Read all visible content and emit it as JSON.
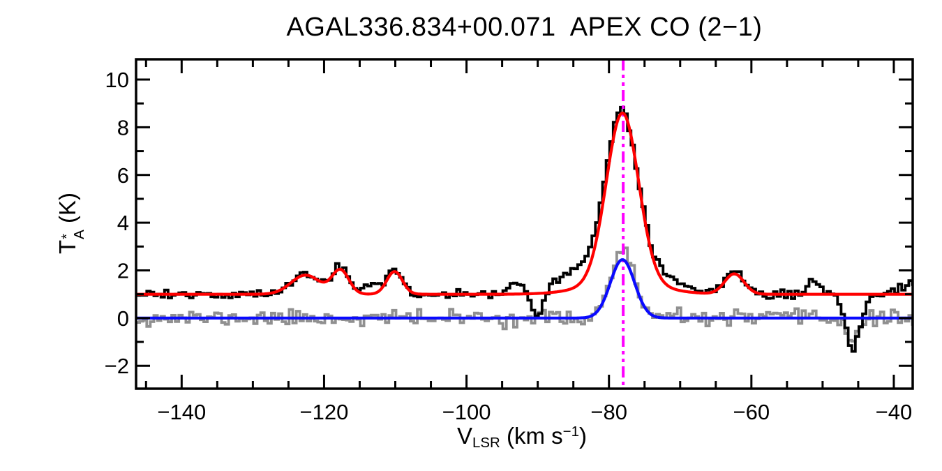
{
  "figure": {
    "title": "AGAL336.834+00.071  APEX CO (2−1)"
  },
  "chart_data": {
    "type": "line",
    "title": "AGAL336.834+00.071  APEX CO (2−1)",
    "xlabel": {
      "pre": "V",
      "sub": "LSR",
      "mid": " (km s",
      "sup": "−1",
      "post": ")"
    },
    "ylabel": {
      "pre": "T",
      "sup": "*",
      "sub": "A",
      "post": " (K)"
    },
    "xlim": [
      -146.4,
      -37.35
    ],
    "ylim": [
      -2.96,
      10.85
    ],
    "grid": false,
    "legend": false,
    "x_ticks": [
      {
        "v": -140,
        "label": "−140"
      },
      {
        "v": -120,
        "label": "−120"
      },
      {
        "v": -100,
        "label": "−100"
      },
      {
        "v": -80,
        "label": "−80"
      },
      {
        "v": -60,
        "label": "−60"
      },
      {
        "v": -40,
        "label": "−40"
      }
    ],
    "x_minor_step": 5,
    "x_major_step": 20,
    "y_ticks": [
      {
        "v": -2,
        "label": "−2"
      },
      {
        "v": 0,
        "label": "0"
      },
      {
        "v": 2,
        "label": "2"
      },
      {
        "v": 4,
        "label": "4"
      },
      {
        "v": 6,
        "label": "6"
      },
      {
        "v": 8,
        "label": "8"
      },
      {
        "v": 10,
        "label": "10"
      }
    ],
    "y_minor_step": 1,
    "y_major_step": 2,
    "channel_width_kms": 0.5,
    "noise_seed": 11,
    "vline": {
      "x": -78.0,
      "color": "#ff00ff",
      "style": "dash-dot-dot",
      "name": "fitted-lsr-velocity-marker"
    },
    "series": [
      {
        "name": "residual-spectrum",
        "description": "second-component / residual spectrum (grey histogram, baseline 0 K)",
        "color": "#909090",
        "style": "histogram",
        "line_width": 3.8,
        "baseline": 0.0,
        "noise_rms": 0.16,
        "draw_order": 1,
        "components": [
          {
            "center": -78.1,
            "amp": 2.8,
            "fwhm": 3.9
          },
          {
            "center": -45.7,
            "amp": -0.75,
            "fwhm": 2.4
          }
        ]
      },
      {
        "name": "observed-spectrum",
        "description": "observed CO(2−1) spectrum, offset +1 K (black histogram)",
        "color": "#000000",
        "style": "histogram",
        "line_width": 3.8,
        "baseline": 1.0,
        "noise_rms": 0.1,
        "draw_order": 2,
        "components": [
          {
            "center": -122.6,
            "amp": 0.85,
            "fwhm": 4.6
          },
          {
            "center": -117.7,
            "amp": 1.05,
            "fwhm": 2.8
          },
          {
            "center": -112.8,
            "amp": 0.45,
            "fwhm": 3.4
          },
          {
            "center": -110.1,
            "amp": 0.95,
            "fwhm": 2.6
          },
          {
            "center": -92.9,
            "amp": 0.5,
            "fwhm": 2.0
          },
          {
            "center": -90.1,
            "amp": -0.95,
            "fwhm": 1.8
          },
          {
            "center": -84.5,
            "amp": 0.6,
            "fwhm": 5.0
          },
          {
            "center": -78.2,
            "amp": 7.1,
            "fwhm": 5.3
          },
          {
            "center": -78.3,
            "amp": 0.7,
            "fwhm": 14.0
          },
          {
            "center": -71.5,
            "amp": 0.3,
            "fwhm": 4.0
          },
          {
            "center": -62.4,
            "amp": 0.95,
            "fwhm": 3.2
          },
          {
            "center": -51.2,
            "amp": 0.55,
            "fwhm": 2.2
          },
          {
            "center": -45.7,
            "amp": -2.3,
            "fwhm": 2.4
          },
          {
            "center": -37.0,
            "amp": 0.5,
            "fwhm": 4.0
          }
        ]
      },
      {
        "name": "secondary-component-fit",
        "description": "Gaussian fit to second velocity component (blue curve)",
        "color": "#0a0aff",
        "style": "smooth",
        "line_width": 4.2,
        "baseline": 0.0,
        "noise_rms": 0,
        "draw_order": 4,
        "components": [
          {
            "center": -78.1,
            "amp": 2.45,
            "fwhm": 4.0
          }
        ]
      },
      {
        "name": "total-fit",
        "description": "multi-Gaussian fit to observed spectrum (red curve)",
        "color": "#ff0000",
        "style": "smooth",
        "line_width": 4.2,
        "baseline": 1.0,
        "noise_rms": 0,
        "draw_order": 5,
        "components": [
          {
            "center": -122.6,
            "amp": 0.8,
            "fwhm": 4.8
          },
          {
            "center": -117.7,
            "amp": 1.0,
            "fwhm": 2.8
          },
          {
            "center": -110.1,
            "amp": 0.95,
            "fwhm": 2.6
          },
          {
            "center": -78.1,
            "amp": 7.1,
            "fwhm": 5.3
          },
          {
            "center": -78.1,
            "amp": 0.5,
            "fwhm": 12.0
          },
          {
            "center": -62.4,
            "amp": 0.85,
            "fwhm": 3.2
          }
        ]
      }
    ]
  }
}
